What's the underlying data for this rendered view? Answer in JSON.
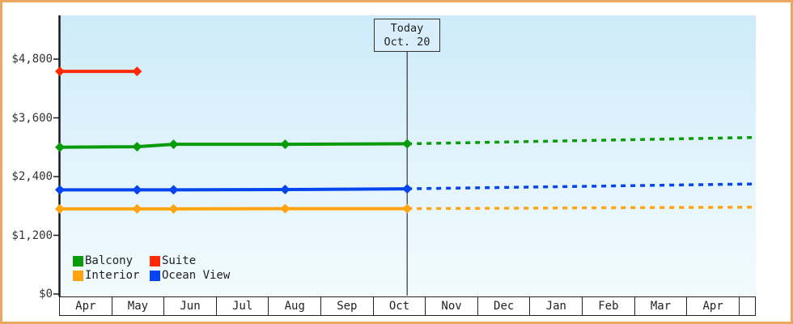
{
  "window": {
    "border_color": "#e9a761",
    "background": "#ffffff"
  },
  "chart_data": {
    "type": "line",
    "title": "",
    "xlabel": "",
    "ylabel": "",
    "grid": false,
    "plot_background_gradient": [
      "#cdebf9",
      "#f2fbfe"
    ],
    "ylim": [
      0,
      5710
    ],
    "y_ticks": [
      {
        "label": "$0",
        "value": 0
      },
      {
        "label": "$1,200",
        "value": 1200
      },
      {
        "label": "$2,400",
        "value": 2400
      },
      {
        "label": "$3,600",
        "value": 3600
      },
      {
        "label": "$4,800",
        "value": 4800
      }
    ],
    "x_months": [
      "Apr",
      "May",
      "Jun",
      "Jul",
      "Aug",
      "Sep",
      "Oct",
      "Nov",
      "Dec",
      "Jan",
      "Feb",
      "Mar",
      "Apr"
    ],
    "x_span_months": 13.33,
    "today": {
      "label_line1": "Today",
      "label_line2": "Oct. 20",
      "x_months": 6.66
    },
    "series": [
      {
        "name": "Balcony",
        "color": "#0a9b0a",
        "points": [
          [
            0,
            3000
          ],
          [
            1.48,
            3010
          ],
          [
            2.18,
            3060
          ],
          [
            4.32,
            3060
          ],
          [
            6.66,
            3070
          ]
        ],
        "projection": [
          [
            6.66,
            3070
          ],
          [
            13.33,
            3200
          ]
        ]
      },
      {
        "name": "Suite",
        "color": "#ff2a06",
        "points": [
          [
            0,
            4550
          ],
          [
            1.48,
            4550
          ]
        ],
        "projection": []
      },
      {
        "name": "Interior",
        "color": "#ffa40e",
        "points": [
          [
            0,
            1740
          ],
          [
            1.48,
            1740
          ],
          [
            2.18,
            1740
          ],
          [
            4.32,
            1745
          ],
          [
            6.66,
            1745
          ]
        ],
        "projection": [
          [
            6.66,
            1745
          ],
          [
            13.33,
            1775
          ]
        ]
      },
      {
        "name": "Ocean View",
        "color": "#0545f0",
        "points": [
          [
            0,
            2130
          ],
          [
            1.48,
            2130
          ],
          [
            2.18,
            2130
          ],
          [
            4.32,
            2135
          ],
          [
            6.66,
            2150
          ]
        ],
        "projection": [
          [
            6.66,
            2150
          ],
          [
            13.33,
            2250
          ]
        ]
      }
    ],
    "legend": {
      "position": "bottom-left",
      "rows": [
        [
          "Balcony",
          "Suite"
        ],
        [
          "Interior",
          "Ocean View"
        ]
      ]
    }
  }
}
